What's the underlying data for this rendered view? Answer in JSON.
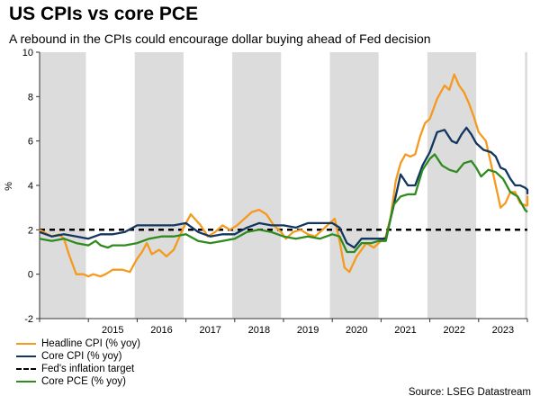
{
  "header": {
    "title": "US CPIs vs core PCE",
    "subtitle": "A rebound in the CPIs could encourage dollar buying ahead of Fed decision"
  },
  "source": "Source: LSEG Datastream",
  "colors": {
    "headline": "#f59a1e",
    "core_cpi": "#12365f",
    "target": "#000000",
    "core_pce": "#2e8b1d",
    "shade": "#dcdcdc"
  },
  "chart_data": {
    "type": "line",
    "ylabel": "%",
    "ylim": [
      -2,
      10
    ],
    "yticks": [
      -2,
      0,
      2,
      4,
      6,
      8,
      10
    ],
    "xlim": [
      2014.0,
      2024.0
    ],
    "xtick_labels": [
      "2015",
      "2016",
      "2017",
      "2018",
      "2019",
      "2020",
      "2021",
      "2022",
      "2023"
    ],
    "shaded_years": [
      2014,
      2016,
      2018,
      2020,
      2022,
      2024
    ],
    "grid": false,
    "legend_position": "bottom-left",
    "series": [
      {
        "name": "Headline CPI (% yoy)",
        "color_key": "headline",
        "dashed": false,
        "points": [
          [
            2014.0,
            2.0
          ],
          [
            2014.25,
            1.7
          ],
          [
            2014.4,
            1.8
          ],
          [
            2014.5,
            1.6
          ],
          [
            2014.6,
            0.9
          ],
          [
            2014.75,
            0.0
          ],
          [
            2014.9,
            0.0
          ],
          [
            2015.0,
            -0.1
          ],
          [
            2015.1,
            0.0
          ],
          [
            2015.25,
            -0.1
          ],
          [
            2015.35,
            0.0
          ],
          [
            2015.5,
            0.2
          ],
          [
            2015.7,
            0.2
          ],
          [
            2015.85,
            0.1
          ],
          [
            2016.0,
            0.7
          ],
          [
            2016.1,
            1.0
          ],
          [
            2016.2,
            1.4
          ],
          [
            2016.3,
            0.9
          ],
          [
            2016.45,
            1.1
          ],
          [
            2016.6,
            0.8
          ],
          [
            2016.75,
            1.1
          ],
          [
            2016.85,
            1.6
          ],
          [
            2016.95,
            2.1
          ],
          [
            2017.1,
            2.7
          ],
          [
            2017.3,
            2.2
          ],
          [
            2017.45,
            1.7
          ],
          [
            2017.6,
            1.9
          ],
          [
            2017.75,
            2.2
          ],
          [
            2017.9,
            2.0
          ],
          [
            2018.05,
            2.2
          ],
          [
            2018.2,
            2.5
          ],
          [
            2018.35,
            2.8
          ],
          [
            2018.5,
            2.9
          ],
          [
            2018.65,
            2.7
          ],
          [
            2018.8,
            2.2
          ],
          [
            2018.95,
            1.9
          ],
          [
            2019.05,
            1.6
          ],
          [
            2019.2,
            1.9
          ],
          [
            2019.35,
            2.0
          ],
          [
            2019.5,
            1.8
          ],
          [
            2019.65,
            1.7
          ],
          [
            2019.8,
            2.0
          ],
          [
            2019.95,
            2.3
          ],
          [
            2020.05,
            2.5
          ],
          [
            2020.15,
            1.5
          ],
          [
            2020.25,
            0.3
          ],
          [
            2020.35,
            0.1
          ],
          [
            2020.5,
            0.8
          ],
          [
            2020.7,
            1.4
          ],
          [
            2020.85,
            1.2
          ],
          [
            2020.95,
            1.4
          ],
          [
            2021.1,
            1.7
          ],
          [
            2021.2,
            2.6
          ],
          [
            2021.3,
            4.2
          ],
          [
            2021.4,
            5.0
          ],
          [
            2021.5,
            5.4
          ],
          [
            2021.6,
            5.3
          ],
          [
            2021.7,
            5.4
          ],
          [
            2021.8,
            6.2
          ],
          [
            2021.9,
            6.8
          ],
          [
            2022.0,
            7.0
          ],
          [
            2022.15,
            7.9
          ],
          [
            2022.3,
            8.5
          ],
          [
            2022.4,
            8.3
          ],
          [
            2022.5,
            9.0
          ],
          [
            2022.6,
            8.5
          ],
          [
            2022.7,
            8.2
          ],
          [
            2022.8,
            7.7
          ],
          [
            2022.9,
            7.1
          ],
          [
            2023.0,
            6.4
          ],
          [
            2023.15,
            6.0
          ],
          [
            2023.25,
            5.0
          ],
          [
            2023.35,
            4.0
          ],
          [
            2023.45,
            3.0
          ],
          [
            2023.55,
            3.2
          ],
          [
            2023.65,
            3.7
          ],
          [
            2023.75,
            3.7
          ],
          [
            2023.85,
            3.2
          ],
          [
            2023.95,
            3.1
          ],
          [
            2024.0,
            3.1
          ],
          [
            2024.1,
            3.5
          ],
          [
            2024.2,
            3.4
          ]
        ]
      },
      {
        "name": "Core CPI (% yoy)",
        "color_key": "core_cpi",
        "dashed": false,
        "points": [
          [
            2014.0,
            1.9
          ],
          [
            2014.25,
            1.7
          ],
          [
            2014.5,
            1.8
          ],
          [
            2014.75,
            1.7
          ],
          [
            2015.0,
            1.6
          ],
          [
            2015.25,
            1.8
          ],
          [
            2015.5,
            1.8
          ],
          [
            2015.75,
            1.9
          ],
          [
            2016.0,
            2.2
          ],
          [
            2016.25,
            2.2
          ],
          [
            2016.5,
            2.2
          ],
          [
            2016.75,
            2.2
          ],
          [
            2017.0,
            2.3
          ],
          [
            2017.25,
            1.9
          ],
          [
            2017.5,
            1.7
          ],
          [
            2017.75,
            1.8
          ],
          [
            2018.0,
            1.8
          ],
          [
            2018.25,
            2.1
          ],
          [
            2018.5,
            2.3
          ],
          [
            2018.75,
            2.2
          ],
          [
            2019.0,
            2.2
          ],
          [
            2019.25,
            2.1
          ],
          [
            2019.5,
            2.3
          ],
          [
            2019.75,
            2.3
          ],
          [
            2020.0,
            2.3
          ],
          [
            2020.15,
            2.1
          ],
          [
            2020.3,
            1.4
          ],
          [
            2020.45,
            1.2
          ],
          [
            2020.6,
            1.6
          ],
          [
            2020.8,
            1.6
          ],
          [
            2020.95,
            1.6
          ],
          [
            2021.1,
            1.6
          ],
          [
            2021.25,
            3.0
          ],
          [
            2021.4,
            4.5
          ],
          [
            2021.55,
            4.0
          ],
          [
            2021.7,
            4.0
          ],
          [
            2021.85,
            4.9
          ],
          [
            2022.0,
            5.5
          ],
          [
            2022.15,
            6.4
          ],
          [
            2022.3,
            6.5
          ],
          [
            2022.45,
            6.0
          ],
          [
            2022.55,
            5.9
          ],
          [
            2022.65,
            6.3
          ],
          [
            2022.75,
            6.6
          ],
          [
            2022.85,
            6.3
          ],
          [
            2022.95,
            5.9
          ],
          [
            2023.1,
            5.6
          ],
          [
            2023.25,
            5.5
          ],
          [
            2023.35,
            5.3
          ],
          [
            2023.45,
            4.8
          ],
          [
            2023.55,
            4.7
          ],
          [
            2023.65,
            4.3
          ],
          [
            2023.75,
            4.0
          ],
          [
            2023.85,
            4.0
          ],
          [
            2023.95,
            3.9
          ],
          [
            2024.05,
            3.8
          ],
          [
            2024.15,
            3.8
          ],
          [
            2024.2,
            3.6
          ]
        ]
      },
      {
        "name": "Fed's inflation target",
        "color_key": "target",
        "dashed": true,
        "points": [
          [
            2014.0,
            2.0
          ],
          [
            2024.3,
            2.0
          ]
        ]
      },
      {
        "name": "Core PCE (% yoy)",
        "color_key": "core_pce",
        "dashed": false,
        "points": [
          [
            2014.0,
            1.6
          ],
          [
            2014.25,
            1.5
          ],
          [
            2014.5,
            1.6
          ],
          [
            2014.75,
            1.4
          ],
          [
            2015.0,
            1.3
          ],
          [
            2015.15,
            1.5
          ],
          [
            2015.25,
            1.3
          ],
          [
            2015.4,
            1.2
          ],
          [
            2015.5,
            1.3
          ],
          [
            2015.75,
            1.3
          ],
          [
            2016.0,
            1.4
          ],
          [
            2016.25,
            1.6
          ],
          [
            2016.5,
            1.7
          ],
          [
            2016.75,
            1.7
          ],
          [
            2017.0,
            1.8
          ],
          [
            2017.25,
            1.5
          ],
          [
            2017.5,
            1.4
          ],
          [
            2017.75,
            1.5
          ],
          [
            2018.0,
            1.6
          ],
          [
            2018.25,
            1.9
          ],
          [
            2018.5,
            2.0
          ],
          [
            2018.75,
            1.9
          ],
          [
            2019.0,
            1.7
          ],
          [
            2019.25,
            1.6
          ],
          [
            2019.5,
            1.7
          ],
          [
            2019.75,
            1.6
          ],
          [
            2020.0,
            1.8
          ],
          [
            2020.15,
            1.7
          ],
          [
            2020.3,
            1.0
          ],
          [
            2020.45,
            1.0
          ],
          [
            2020.6,
            1.4
          ],
          [
            2020.8,
            1.4
          ],
          [
            2020.95,
            1.5
          ],
          [
            2021.1,
            1.5
          ],
          [
            2021.25,
            3.1
          ],
          [
            2021.4,
            3.5
          ],
          [
            2021.55,
            3.6
          ],
          [
            2021.7,
            3.6
          ],
          [
            2021.85,
            4.7
          ],
          [
            2022.0,
            5.2
          ],
          [
            2022.1,
            5.4
          ],
          [
            2022.25,
            4.9
          ],
          [
            2022.4,
            4.7
          ],
          [
            2022.55,
            4.6
          ],
          [
            2022.7,
            5.0
          ],
          [
            2022.85,
            5.1
          ],
          [
            2022.95,
            4.8
          ],
          [
            2023.05,
            4.4
          ],
          [
            2023.2,
            4.7
          ],
          [
            2023.35,
            4.6
          ],
          [
            2023.5,
            4.3
          ],
          [
            2023.65,
            3.7
          ],
          [
            2023.8,
            3.5
          ],
          [
            2023.95,
            2.9
          ],
          [
            2024.05,
            2.8
          ],
          [
            2024.2,
            2.8
          ]
        ]
      }
    ]
  }
}
